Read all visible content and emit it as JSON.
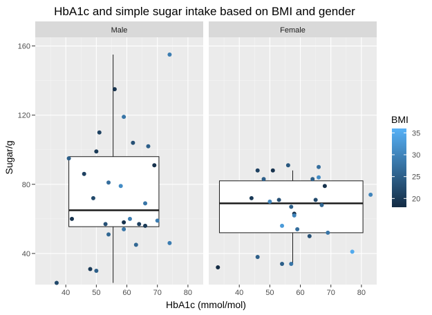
{
  "chart_data": {
    "type": "scatter",
    "title": "HbA1c and simple sugar intake based on BMI and gender",
    "xlabel": "HbA1c (mmol/mol)",
    "ylabel": "Sugar/g",
    "xlim": [
      30,
      85
    ],
    "ylim": [
      22,
      165
    ],
    "x_ticks": [
      40,
      50,
      60,
      70,
      80
    ],
    "y_ticks": [
      40,
      80,
      120,
      160
    ],
    "grid": true,
    "color_legend": {
      "title": "BMI",
      "ticks": [
        20,
        25,
        30,
        35
      ],
      "range": [
        18,
        36
      ],
      "low_color": "#132b43",
      "high_color": "#56b1f7",
      "placement": "right"
    },
    "colors": {
      "panel_bg": "#ebebeb",
      "strip_bg": "#d9d9d9",
      "grid_major": "#ffffff",
      "box_fill": "#ffffff",
      "box_stroke": "#1a1a1a"
    },
    "panels": [
      {
        "name": "Male",
        "box": {
          "x_min": 41,
          "x_max": 70.5,
          "whisker_x": 55.5,
          "q1": 55.5,
          "median": 65,
          "q3": 96,
          "lower": 23,
          "upper": 155
        },
        "points": [
          {
            "x": 37,
            "y": 23,
            "bmi": 22
          },
          {
            "x": 41,
            "y": 95,
            "bmi": 25
          },
          {
            "x": 42,
            "y": 60,
            "bmi": 19
          },
          {
            "x": 46,
            "y": 86,
            "bmi": 21
          },
          {
            "x": 48,
            "y": 31,
            "bmi": 20
          },
          {
            "x": 49,
            "y": 72,
            "bmi": 22
          },
          {
            "x": 50,
            "y": 99,
            "bmi": 20
          },
          {
            "x": 50,
            "y": 30,
            "bmi": 25
          },
          {
            "x": 51,
            "y": 110,
            "bmi": 21
          },
          {
            "x": 53,
            "y": 57,
            "bmi": 23
          },
          {
            "x": 54,
            "y": 51,
            "bmi": 26
          },
          {
            "x": 54,
            "y": 81,
            "bmi": 27
          },
          {
            "x": 56,
            "y": 135,
            "bmi": 19
          },
          {
            "x": 58,
            "y": 79,
            "bmi": 31
          },
          {
            "x": 59,
            "y": 58,
            "bmi": 19
          },
          {
            "x": 59,
            "y": 119,
            "bmi": 28
          },
          {
            "x": 59,
            "y": 54,
            "bmi": 28
          },
          {
            "x": 61,
            "y": 60,
            "bmi": 29
          },
          {
            "x": 62,
            "y": 104,
            "bmi": 23
          },
          {
            "x": 63,
            "y": 45,
            "bmi": 26
          },
          {
            "x": 64,
            "y": 57,
            "bmi": 21
          },
          {
            "x": 66,
            "y": 56,
            "bmi": 20
          },
          {
            "x": 66,
            "y": 69,
            "bmi": 28
          },
          {
            "x": 67,
            "y": 102,
            "bmi": 25
          },
          {
            "x": 69,
            "y": 91,
            "bmi": 19
          },
          {
            "x": 70,
            "y": 59,
            "bmi": 29
          },
          {
            "x": 74,
            "y": 155,
            "bmi": 29
          },
          {
            "x": 74,
            "y": 46,
            "bmi": 29
          }
        ]
      },
      {
        "name": "Female",
        "box": {
          "x_min": 33.5,
          "x_max": 80.5,
          "whisker_x": 57.5,
          "q1": 52,
          "median": 69,
          "q3": 82,
          "lower": 34,
          "upper": 88
        },
        "points": [
          {
            "x": 33,
            "y": 32,
            "bmi": 18
          },
          {
            "x": 44,
            "y": 72,
            "bmi": 20
          },
          {
            "x": 46,
            "y": 88,
            "bmi": 21
          },
          {
            "x": 46,
            "y": 38,
            "bmi": 25
          },
          {
            "x": 48,
            "y": 83,
            "bmi": 25
          },
          {
            "x": 50,
            "y": 70,
            "bmi": 30
          },
          {
            "x": 51,
            "y": 88,
            "bmi": 19
          },
          {
            "x": 53,
            "y": 71,
            "bmi": 23
          },
          {
            "x": 54,
            "y": 34,
            "bmi": 25
          },
          {
            "x": 54,
            "y": 56,
            "bmi": 33
          },
          {
            "x": 56,
            "y": 91,
            "bmi": 24
          },
          {
            "x": 57,
            "y": 34,
            "bmi": 28
          },
          {
            "x": 57,
            "y": 67,
            "bmi": 25
          },
          {
            "x": 58,
            "y": 63,
            "bmi": 19
          },
          {
            "x": 58,
            "y": 62,
            "bmi": 30
          },
          {
            "x": 59,
            "y": 54,
            "bmi": 27
          },
          {
            "x": 63,
            "y": 50,
            "bmi": 23
          },
          {
            "x": 64,
            "y": 83,
            "bmi": 25
          },
          {
            "x": 65,
            "y": 71,
            "bmi": 22
          },
          {
            "x": 66,
            "y": 90,
            "bmi": 27
          },
          {
            "x": 66,
            "y": 84,
            "bmi": 31
          },
          {
            "x": 67,
            "y": 68,
            "bmi": 26
          },
          {
            "x": 68,
            "y": 79,
            "bmi": 19
          },
          {
            "x": 69,
            "y": 52,
            "bmi": 28
          },
          {
            "x": 77,
            "y": 41,
            "bmi": 35
          },
          {
            "x": 83,
            "y": 74,
            "bmi": 30
          }
        ]
      }
    ]
  }
}
